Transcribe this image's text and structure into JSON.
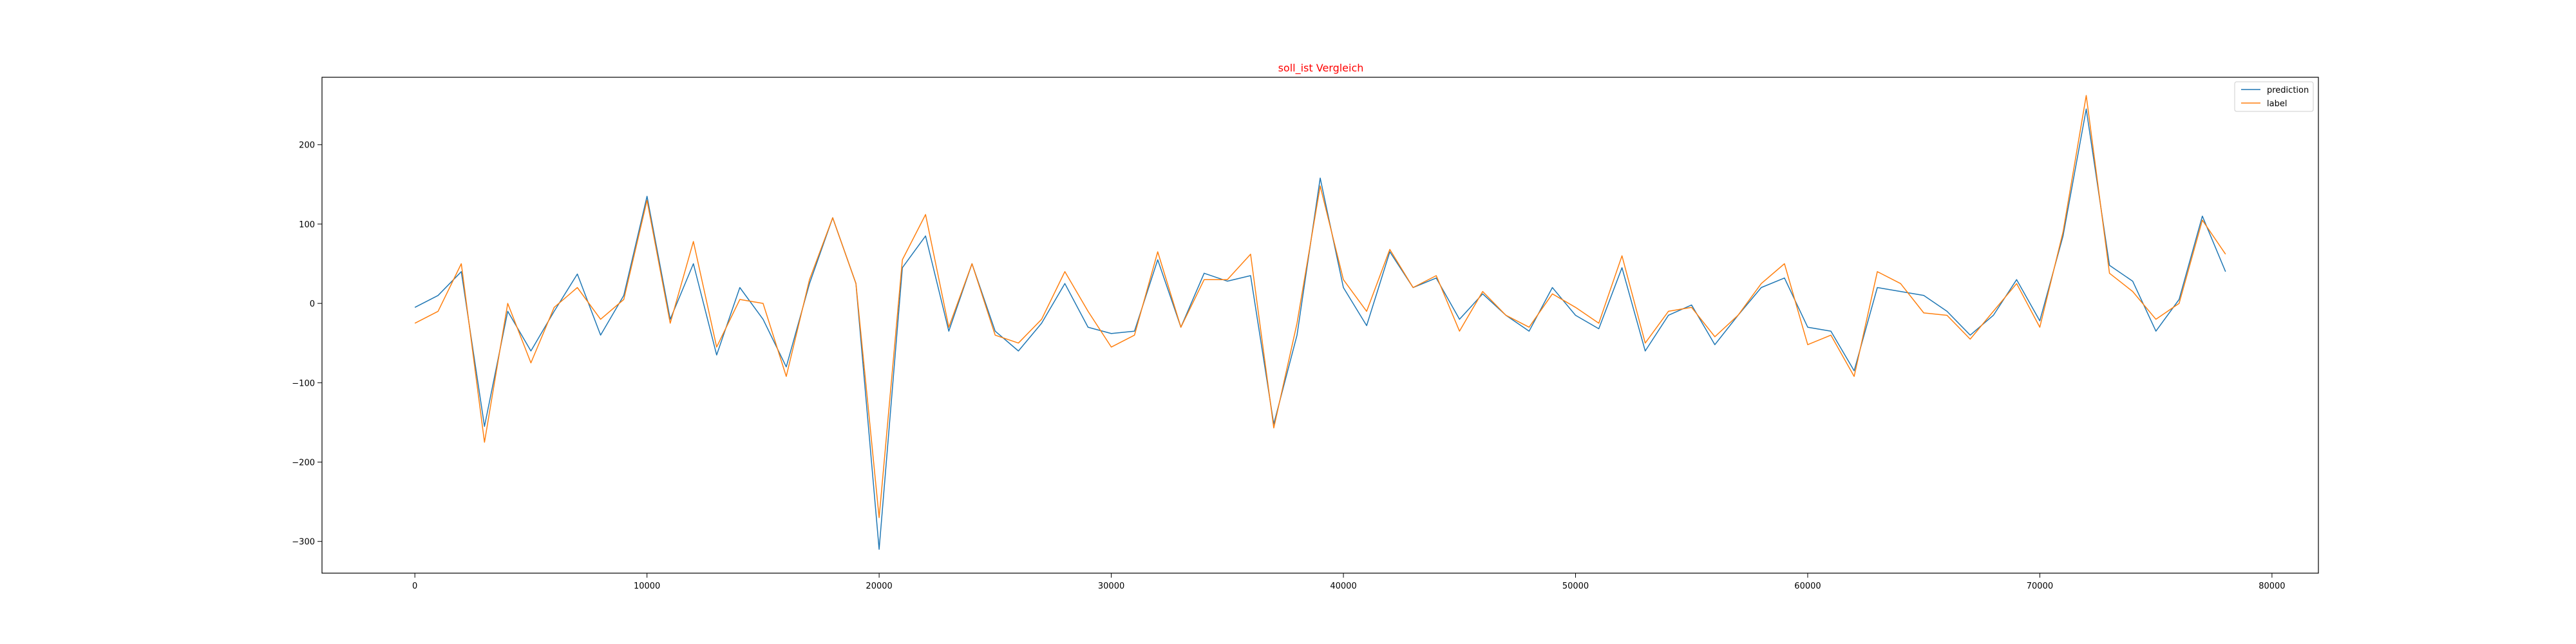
{
  "chart_data": {
    "type": "line",
    "title": "soll_ist Vergleich",
    "title_color": "#ff0000",
    "xlabel": "",
    "ylabel": "",
    "xlim": [
      -4000,
      82000
    ],
    "ylim": [
      -340,
      285
    ],
    "xticks": [
      0,
      10000,
      20000,
      30000,
      40000,
      50000,
      60000,
      70000,
      80000
    ],
    "yticks": [
      -300,
      -200,
      -100,
      0,
      100,
      200
    ],
    "grid": false,
    "legend_position": "top-right",
    "x": [
      0,
      1000,
      2000,
      3000,
      4000,
      5000,
      6000,
      7000,
      8000,
      9000,
      10000,
      11000,
      12000,
      13000,
      14000,
      15000,
      16000,
      17000,
      18000,
      19000,
      20000,
      21000,
      22000,
      23000,
      24000,
      25000,
      26000,
      27000,
      28000,
      29000,
      30000,
      31000,
      32000,
      33000,
      34000,
      35000,
      36000,
      37000,
      38000,
      39000,
      40000,
      41000,
      42000,
      43000,
      44000,
      45000,
      46000,
      47000,
      48000,
      49000,
      50000,
      51000,
      52000,
      53000,
      54000,
      55000,
      56000,
      57000,
      58000,
      59000,
      60000,
      61000,
      62000,
      63000,
      64000,
      65000,
      66000,
      67000,
      68000,
      69000,
      70000,
      71000,
      72000,
      73000,
      74000,
      75000,
      76000,
      77000,
      78000
    ],
    "series": [
      {
        "name": "prediction",
        "color": "#1f77b4",
        "values": [
          -5,
          10,
          40,
          -155,
          -10,
          -60,
          -10,
          37,
          -40,
          10,
          135,
          -20,
          50,
          -65,
          20,
          -20,
          -80,
          25,
          108,
          25,
          -310,
          45,
          85,
          -35,
          50,
          -35,
          -60,
          -25,
          25,
          -30,
          -38,
          -35,
          55,
          -30,
          38,
          28,
          35,
          -152,
          -40,
          158,
          20,
          -28,
          65,
          20,
          32,
          -20,
          12,
          -15,
          -35,
          20,
          -15,
          -32,
          45,
          -60,
          -15,
          -2,
          -52,
          -15,
          20,
          32,
          -30,
          -35,
          -85,
          20,
          15,
          10,
          -10,
          -40,
          -15,
          30,
          -22,
          85,
          245,
          48,
          28,
          -35,
          5,
          110,
          40
        ]
      },
      {
        "name": "label",
        "color": "#ff7f0e",
        "values": [
          -25,
          -10,
          50,
          -175,
          0,
          -75,
          -5,
          20,
          -20,
          5,
          130,
          -25,
          78,
          -55,
          5,
          0,
          -92,
          30,
          108,
          25,
          -270,
          55,
          112,
          -30,
          50,
          -40,
          -50,
          -20,
          40,
          -10,
          -55,
          -40,
          65,
          -30,
          30,
          30,
          62,
          -157,
          -25,
          148,
          30,
          -10,
          68,
          20,
          35,
          -35,
          15,
          -15,
          -30,
          12,
          -5,
          -25,
          60,
          -50,
          -10,
          -5,
          -42,
          -15,
          25,
          50,
          -52,
          -40,
          -92,
          40,
          25,
          -12,
          -15,
          -45,
          -10,
          25,
          -30,
          90,
          262,
          38,
          15,
          -20,
          0,
          105,
          62
        ]
      }
    ]
  }
}
